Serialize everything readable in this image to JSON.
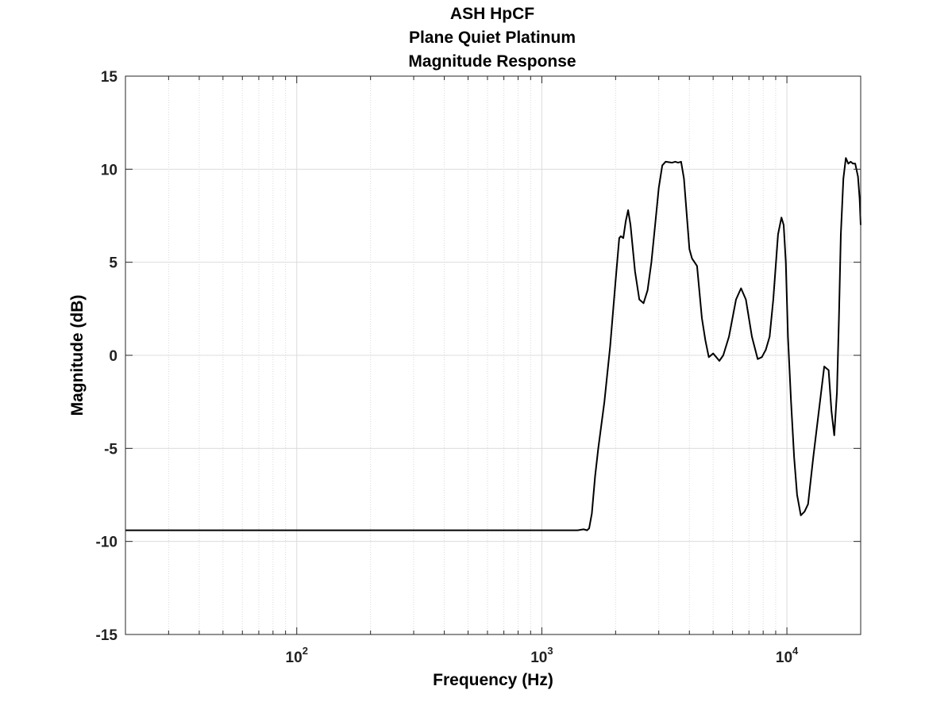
{
  "chart_data": {
    "type": "line",
    "title": [
      "ASH HpCF",
      "Plane Quiet Platinum",
      "Magnitude Response"
    ],
    "xlabel": "Frequency (Hz)",
    "ylabel": "Magnitude (dB)",
    "xscale": "log",
    "xlim": [
      20,
      20000
    ],
    "ylim": [
      -15,
      15
    ],
    "yticks": [
      -15,
      -10,
      -5,
      0,
      5,
      10,
      15
    ],
    "ytick_labels": [
      "-15",
      "-10",
      "-5",
      "0",
      "5",
      "10",
      "15"
    ],
    "xticks": [
      100,
      1000,
      10000
    ],
    "xtick_labels": [
      {
        "base": "10",
        "exp": "2"
      },
      {
        "base": "10",
        "exp": "3"
      },
      {
        "base": "10",
        "exp": "4"
      }
    ],
    "grid": true,
    "legend": "none",
    "line_color": "#000000",
    "series": [
      {
        "x": [
          20,
          100,
          1000,
          1400,
          1480,
          1530,
          1560,
          1600,
          1650,
          1700,
          1800,
          1900,
          2000,
          2070,
          2100,
          2150,
          2200,
          2250,
          2300,
          2400,
          2500,
          2600,
          2700,
          2800,
          2900,
          3000,
          3100,
          3200,
          3400,
          3500,
          3600,
          3700,
          3800,
          4000,
          4100,
          4200,
          4300,
          4500,
          4650,
          4800,
          5000,
          5150,
          5300,
          5500,
          5800,
          6200,
          6500,
          6800,
          7200,
          7600,
          7900,
          8200,
          8500,
          8800,
          9200,
          9500,
          9700,
          9900,
          10100,
          10400,
          10700,
          11000,
          11400,
          11800,
          12200,
          12800,
          13500,
          14200,
          14800,
          15200,
          15600,
          16000,
          16300,
          16600,
          17000,
          17400,
          17800,
          18200,
          18600,
          19000,
          19500,
          19800,
          20000
        ],
        "y": [
          -9.4,
          -9.4,
          -9.4,
          -9.4,
          -9.35,
          -9.4,
          -9.3,
          -8.5,
          -6.5,
          -5.0,
          -2.5,
          0.5,
          4.0,
          6.3,
          6.4,
          6.3,
          7.2,
          7.8,
          7.0,
          4.5,
          3.0,
          2.8,
          3.5,
          5.0,
          7.0,
          9.0,
          10.2,
          10.4,
          10.35,
          10.4,
          10.35,
          10.4,
          9.5,
          5.7,
          5.2,
          5.0,
          4.8,
          2.0,
          0.8,
          -0.1,
          0.1,
          -0.1,
          -0.3,
          0.0,
          1.0,
          3.0,
          3.6,
          3.0,
          1.0,
          -0.2,
          -0.1,
          0.3,
          1.0,
          3.0,
          6.5,
          7.4,
          7.0,
          5.0,
          1.0,
          -2.5,
          -5.5,
          -7.5,
          -8.6,
          -8.4,
          -8.0,
          -5.5,
          -3.0,
          -0.6,
          -0.8,
          -3.0,
          -4.3,
          -2.0,
          2.0,
          6.5,
          9.5,
          10.6,
          10.3,
          10.4,
          10.3,
          10.3,
          9.6,
          8.4,
          7.0
        ]
      }
    ]
  }
}
